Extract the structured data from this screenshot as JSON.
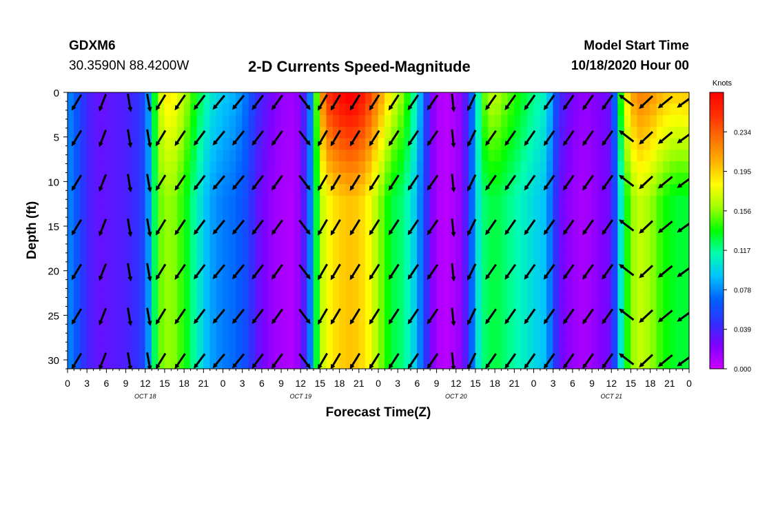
{
  "header": {
    "station": "GDXM6",
    "coords": "30.3590N 88.4200W",
    "title": "2-D Currents Speed-Magnitude",
    "model_start_label": "Model Start Time",
    "model_start_value": "10/18/2020 Hour 00"
  },
  "chart_data": {
    "type": "heatmap",
    "title": "2-D Currents Speed-Magnitude",
    "xlabel": "Forecast Time(Z)",
    "ylabel": "Depth (ft)",
    "x_range_hours": [
      0,
      96
    ],
    "y_range_ft": [
      0,
      31
    ],
    "y_inverted": true,
    "x_tick_labels": [
      "0",
      "3",
      "6",
      "9",
      "12",
      "15",
      "18",
      "21",
      "0",
      "3",
      "6",
      "9",
      "12",
      "15",
      "18",
      "21",
      "0",
      "3",
      "6",
      "9",
      "12",
      "15",
      "18",
      "21",
      "0",
      "3",
      "6",
      "9",
      "12",
      "15",
      "18",
      "21",
      "0"
    ],
    "y_tick_labels": [
      "0",
      "5",
      "10",
      "15",
      "20",
      "25",
      "30"
    ],
    "day_labels": [
      {
        "hour": 12,
        "text": "OCT 18"
      },
      {
        "hour": 36,
        "text": "OCT 19"
      },
      {
        "hour": 60,
        "text": "OCT 20"
      },
      {
        "hour": 84,
        "text": "OCT 21"
      }
    ],
    "colorbar": {
      "unit": "Knots",
      "range": [
        0,
        0.273
      ],
      "tick_labels": [
        "0.234",
        "0.195",
        "0.156",
        "0.117",
        "0.078",
        "0.039",
        "0.000"
      ],
      "tick_values": [
        0.234,
        0.195,
        0.156,
        0.117,
        0.078,
        0.039,
        0.0
      ],
      "colors": [
        "#cc00ff",
        "#8000ff",
        "#3030ff",
        "#0060ff",
        "#00c0ff",
        "#00ffb0",
        "#00ff00",
        "#a0ff00",
        "#ffff00",
        "#ffb000",
        "#ff7000",
        "#ff3000",
        "#ff0000"
      ]
    },
    "vector_rows_ft": [
      1,
      5,
      10,
      15,
      20,
      25,
      30
    ],
    "vector_columns_hours": [
      1.5,
      5.5,
      9.5,
      12.5,
      14.5,
      17.5,
      20.5,
      23.5,
      26.5,
      29.5,
      32.5,
      36.5,
      39.5,
      41.5,
      44.5,
      47.5,
      50.5,
      53.5,
      56.5,
      59.5,
      62.5,
      65.5,
      68.5,
      71.5,
      74.5,
      77.5,
      80.5,
      83.5,
      86.5,
      89.5,
      92.5,
      95.5
    ],
    "speed_by_hour": [
      [
        0,
        0.08
      ],
      [
        1,
        0.07
      ],
      [
        3,
        0.04
      ],
      [
        5,
        0.03
      ],
      [
        8,
        0.035
      ],
      [
        11,
        0.045
      ],
      [
        12,
        0.06
      ],
      [
        13,
        0.1
      ],
      [
        14,
        0.15
      ],
      [
        16,
        0.16
      ],
      [
        18,
        0.14
      ],
      [
        20,
        0.11
      ],
      [
        22,
        0.085
      ],
      [
        24,
        0.075
      ],
      [
        26,
        0.07
      ],
      [
        28,
        0.055
      ],
      [
        29,
        0.035
      ],
      [
        31,
        0.02
      ],
      [
        33,
        0.01
      ],
      [
        35,
        0.008
      ],
      [
        36,
        0.02
      ],
      [
        37,
        0.05
      ],
      [
        38,
        0.1
      ],
      [
        39,
        0.16
      ],
      [
        40,
        0.18
      ],
      [
        42,
        0.195
      ],
      [
        44,
        0.2
      ],
      [
        46,
        0.19
      ],
      [
        48,
        0.16
      ],
      [
        50,
        0.13
      ],
      [
        52,
        0.12
      ],
      [
        54,
        0.09
      ],
      [
        55,
        0.06
      ],
      [
        56,
        0.03
      ],
      [
        57,
        0.01
      ],
      [
        59,
        0.005
      ],
      [
        61,
        0.02
      ],
      [
        62,
        0.05
      ],
      [
        63,
        0.09
      ],
      [
        64,
        0.12
      ],
      [
        66,
        0.13
      ],
      [
        68,
        0.12
      ],
      [
        70,
        0.11
      ],
      [
        72,
        0.1
      ],
      [
        74,
        0.09
      ],
      [
        75,
        0.06
      ],
      [
        76,
        0.03
      ],
      [
        78,
        0.015
      ],
      [
        80,
        0.01
      ],
      [
        82,
        0.02
      ],
      [
        84,
        0.03
      ],
      [
        85,
        0.08
      ],
      [
        86,
        0.13
      ],
      [
        88,
        0.17
      ],
      [
        90,
        0.16
      ],
      [
        92,
        0.14
      ],
      [
        94,
        0.13
      ],
      [
        96,
        0.13
      ]
    ],
    "surface_boost_by_hour": [
      [
        0,
        0
      ],
      [
        13,
        0
      ],
      [
        15,
        0.03
      ],
      [
        24,
        0.02
      ],
      [
        38,
        0
      ],
      [
        40,
        0.07
      ],
      [
        44,
        0.08
      ],
      [
        50,
        0.05
      ],
      [
        56,
        0
      ],
      [
        63,
        0
      ],
      [
        65,
        0.04
      ],
      [
        72,
        0.02
      ],
      [
        84,
        0
      ],
      [
        86,
        0.05
      ],
      [
        96,
        0.07
      ]
    ],
    "direction_deg_by_hour": [
      [
        0,
        235
      ],
      [
        8,
        255
      ],
      [
        12,
        320
      ],
      [
        13,
        240
      ],
      [
        24,
        230
      ],
      [
        34,
        235
      ],
      [
        36,
        330
      ],
      [
        38,
        240
      ],
      [
        58,
        235
      ],
      [
        60,
        290
      ],
      [
        63,
        235
      ],
      [
        84,
        235
      ],
      [
        85,
        60
      ],
      [
        88,
        225
      ],
      [
        96,
        215
      ]
    ]
  }
}
